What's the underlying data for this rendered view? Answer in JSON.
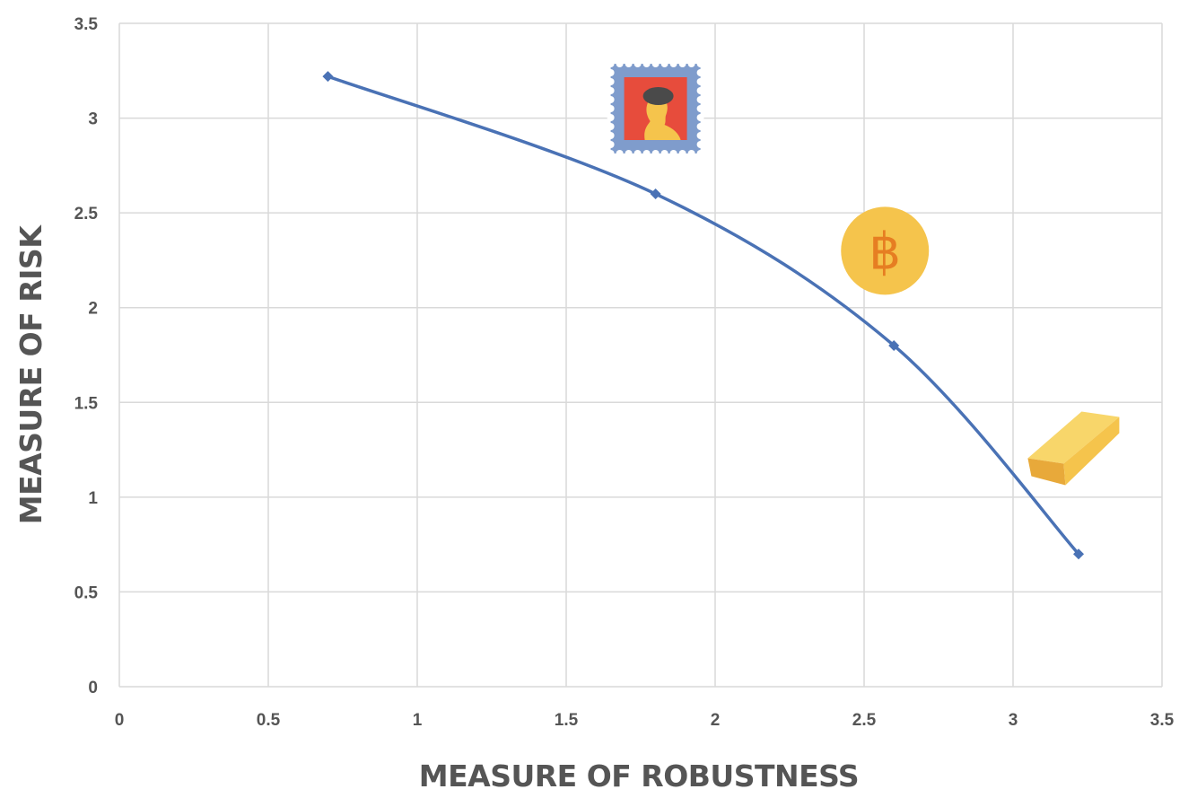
{
  "chart_data": {
    "type": "line",
    "title": "",
    "xlabel": "MEASURE OF ROBUSTNESS",
    "ylabel": "MEASURE OF RISK",
    "xlim": [
      0,
      3.5
    ],
    "ylim": [
      0,
      3.5
    ],
    "xticks": [
      "0",
      "0.5",
      "1",
      "1.5",
      "2",
      "2.5",
      "3",
      "3.5"
    ],
    "yticks": [
      "0",
      "0.5",
      "1",
      "1.5",
      "2",
      "2.5",
      "3",
      "3.5"
    ],
    "grid": true,
    "legend": "none",
    "smooth": true,
    "series": [
      {
        "x": [
          0.7,
          1.8,
          2.6,
          3.22
        ],
        "y": [
          3.22,
          2.6,
          1.8,
          0.7
        ],
        "color": "#4a72b5",
        "marker": "diamond"
      }
    ],
    "annotations": [
      {
        "icon": "postage-stamp-icon",
        "x": 1.8,
        "y": 3.05
      },
      {
        "icon": "bitcoin-coin-icon",
        "x": 2.57,
        "y": 2.3
      },
      {
        "icon": "gold-bar-icon",
        "x": 3.2,
        "y": 1.3
      }
    ]
  },
  "colors": {
    "gridline": "#d9d9d9",
    "tick_text": "#555555",
    "line": "#4a72b5",
    "stamp_border": "#7f9ccc",
    "stamp_bg": "#e74c3c",
    "coin": "#f5c44c",
    "coin_symbol": "#e67e22",
    "gold": "#f5c44c"
  }
}
